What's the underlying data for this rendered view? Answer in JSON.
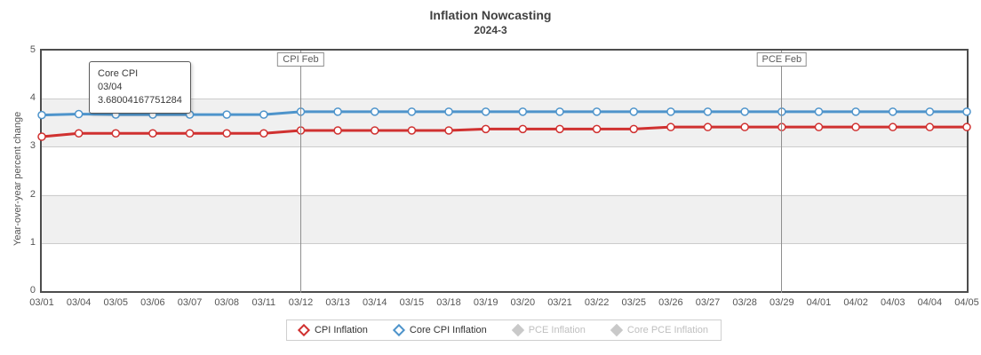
{
  "title": "Inflation Nowcasting",
  "subtitle": "2024-3",
  "y_axis": {
    "title": "Year-over-year percent change",
    "ticks": [
      0,
      1,
      2,
      3,
      4,
      5
    ]
  },
  "tooltip": {
    "series": "Core CPI",
    "date": "03/04",
    "value": "3.68004167751284"
  },
  "event_markers": [
    {
      "label": "CPI Feb",
      "date": "03/12"
    },
    {
      "label": "PCE Feb",
      "date": "03/29"
    }
  ],
  "legend": [
    {
      "label": "CPI Inflation",
      "color": "#d03130",
      "active": true
    },
    {
      "label": "Core CPI Inflation",
      "color": "#4e94cb",
      "active": true
    },
    {
      "label": "PCE Inflation",
      "color": "#c9c9c9",
      "active": false
    },
    {
      "label": "Core PCE Inflation",
      "color": "#c9c9c9",
      "active": false
    }
  ],
  "colors": {
    "grid": "#cccccc",
    "band": "#f0f0f0",
    "plot_border": "#4d4d4d",
    "event_line": "#8f8f8f",
    "axis_text": "#555555",
    "cpi": "#d03130",
    "core_cpi": "#4e94cb"
  },
  "chart_data": {
    "type": "line",
    "title": "Inflation Nowcasting",
    "subtitle": "2024-3",
    "xlabel": "",
    "ylabel": "Year-over-year percent change",
    "ylim": [
      0,
      5
    ],
    "grid": true,
    "legend_position": "bottom",
    "x": [
      "03/01",
      "03/04",
      "03/05",
      "03/06",
      "03/07",
      "03/08",
      "03/11",
      "03/12",
      "03/13",
      "03/14",
      "03/15",
      "03/18",
      "03/19",
      "03/20",
      "03/21",
      "03/22",
      "03/25",
      "03/26",
      "03/27",
      "03/28",
      "03/29",
      "04/01",
      "04/02",
      "04/03",
      "04/04",
      "04/05"
    ],
    "series": [
      {
        "name": "CPI Inflation",
        "color": "#d03130",
        "values": [
          3.21,
          3.28,
          3.28,
          3.28,
          3.28,
          3.28,
          3.28,
          3.34,
          3.34,
          3.34,
          3.34,
          3.34,
          3.37,
          3.37,
          3.37,
          3.37,
          3.37,
          3.41,
          3.41,
          3.41,
          3.41,
          3.41,
          3.41,
          3.41,
          3.41,
          3.41
        ]
      },
      {
        "name": "Core CPI Inflation",
        "color": "#4e94cb",
        "values": [
          3.66,
          3.68,
          3.67,
          3.67,
          3.67,
          3.67,
          3.67,
          3.73,
          3.73,
          3.73,
          3.73,
          3.73,
          3.73,
          3.73,
          3.73,
          3.73,
          3.73,
          3.73,
          3.73,
          3.73,
          3.73,
          3.73,
          3.73,
          3.73,
          3.73,
          3.73
        ]
      },
      {
        "name": "PCE Inflation",
        "color": "#c9c9c9",
        "values": []
      },
      {
        "name": "Core PCE Inflation",
        "color": "#c9c9c9",
        "values": []
      }
    ],
    "annotation_line_value": 3.68004167751284
  }
}
